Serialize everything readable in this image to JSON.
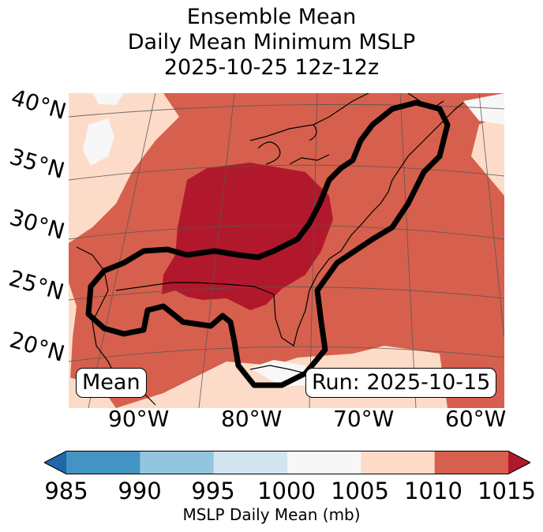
{
  "title": {
    "line1": "Ensemble Mean",
    "line2": "Daily Mean Minimum MSLP",
    "line3": "2025-10-25 12z-12z"
  },
  "map": {
    "lat_labels": [
      "40°N",
      "35°N",
      "30°N",
      "25°N",
      "20°N"
    ],
    "lon_labels": [
      "90°W",
      "80°W",
      "70°W",
      "60°W"
    ],
    "mean_badge": "Mean",
    "run_badge": "Run: 2025-10-15"
  },
  "colorbar": {
    "label": "MSLP Daily Mean (mb)",
    "ticks": [
      "985",
      "990",
      "995",
      "1000",
      "1005",
      "1010",
      "1015"
    ],
    "bins": [
      {
        "range": "<985",
        "color": "#2166ac"
      },
      {
        "range": "985-990",
        "color": "#4393c3"
      },
      {
        "range": "990-995",
        "color": "#92c5de"
      },
      {
        "range": "995-1000",
        "color": "#d1e5f0"
      },
      {
        "range": "1000-1005",
        "color": "#f7f7f7"
      },
      {
        "range": "1005-1010",
        "color": "#fddbc7"
      },
      {
        "range": "1010-1015",
        "color": "#d6604d"
      },
      {
        "range": ">1015",
        "color": "#b2182b"
      }
    ]
  }
}
